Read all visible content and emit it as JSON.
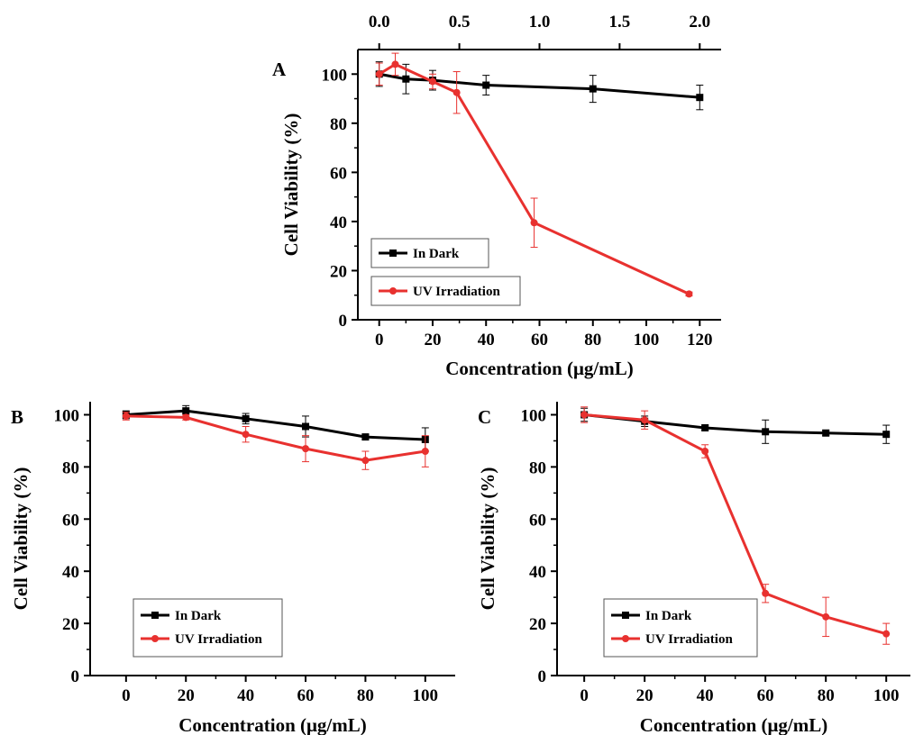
{
  "chart_data": [
    {
      "id": "A",
      "type": "line",
      "panel_label": "A",
      "xlabel": "Concentration (μg/mL)",
      "ylabel": "Cell Viability (%)",
      "xlim": [
        -8,
        128
      ],
      "ylim": [
        0,
        110
      ],
      "xticks": [
        0,
        20,
        40,
        60,
        80,
        100,
        120
      ],
      "yticks": [
        0,
        20,
        40,
        60,
        80,
        100
      ],
      "secondary_x": {
        "position": "top",
        "xlim": [
          -0.1333,
          2.1333
        ],
        "ticks": [
          0.0,
          0.5,
          1.0,
          1.5,
          2.0
        ],
        "tick_labels": [
          "0.0",
          "0.5",
          "1.0",
          "1.5",
          "2.0"
        ]
      },
      "legend_position": "bottom-left",
      "grid": false,
      "series": [
        {
          "name": "In Dark",
          "color": "#000000",
          "marker": "square",
          "x": [
            0,
            10,
            20,
            40,
            80,
            120
          ],
          "y": [
            100,
            98,
            97.5,
            95.5,
            94,
            90.5
          ],
          "err": [
            5,
            6,
            4,
            4,
            5.5,
            5
          ]
        },
        {
          "name": "UV Irradiation",
          "color": "#e8312f",
          "marker": "circle",
          "x": [
            0,
            6,
            20,
            29,
            58,
            116
          ],
          "y": [
            100,
            104,
            97,
            92.5,
            39.5,
            10.5
          ],
          "err": [
            4.5,
            4.5,
            3,
            8.5,
            10,
            0.8
          ]
        }
      ]
    },
    {
      "id": "B",
      "type": "line",
      "panel_label": "B",
      "xlabel": "Concentration (μg/mL)",
      "ylabel": "Cell Viability (%)",
      "xlim": [
        -12,
        110
      ],
      "ylim": [
        0,
        105
      ],
      "xticks": [
        0,
        20,
        40,
        60,
        80,
        100
      ],
      "yticks": [
        0,
        20,
        40,
        60,
        80,
        100
      ],
      "legend_position": "bottom-left",
      "grid": false,
      "series": [
        {
          "name": "In Dark",
          "color": "#000000",
          "marker": "square",
          "x": [
            0,
            20,
            40,
            60,
            80,
            100
          ],
          "y": [
            100,
            101.5,
            98.5,
            95.5,
            91.5,
            90.5
          ],
          "err": [
            1.5,
            2,
            2,
            4,
            1,
            4.5
          ]
        },
        {
          "name": "UV Irradiation",
          "color": "#e8312f",
          "marker": "circle",
          "x": [
            0,
            20,
            40,
            60,
            80,
            100
          ],
          "y": [
            99.5,
            99,
            92.5,
            87,
            82.5,
            86
          ],
          "err": [
            1.5,
            1,
            3,
            5,
            3.5,
            6
          ]
        }
      ]
    },
    {
      "id": "C",
      "type": "line",
      "panel_label": "C",
      "xlabel": "Concentration (μg/mL)",
      "ylabel": "Cell Viability (%)",
      "xlim": [
        -9,
        108
      ],
      "ylim": [
        0,
        105
      ],
      "xticks": [
        0,
        20,
        40,
        60,
        80,
        100
      ],
      "yticks": [
        0,
        20,
        40,
        60,
        80,
        100
      ],
      "legend_position": "bottom-left",
      "grid": false,
      "series": [
        {
          "name": "In Dark",
          "color": "#000000",
          "marker": "square",
          "x": [
            0,
            20,
            40,
            60,
            80,
            100
          ],
          "y": [
            100,
            97.5,
            95,
            93.5,
            93,
            92.5
          ],
          "err": [
            2.5,
            2,
            1,
            4.5,
            1,
            3.5
          ]
        },
        {
          "name": "UV Irradiation",
          "color": "#e8312f",
          "marker": "circle",
          "x": [
            0,
            20,
            40,
            60,
            80,
            100
          ],
          "y": [
            100,
            98,
            86,
            31.5,
            22.5,
            16
          ],
          "err": [
            3,
            3.5,
            2.5,
            3.5,
            7.5,
            4
          ]
        }
      ]
    }
  ]
}
